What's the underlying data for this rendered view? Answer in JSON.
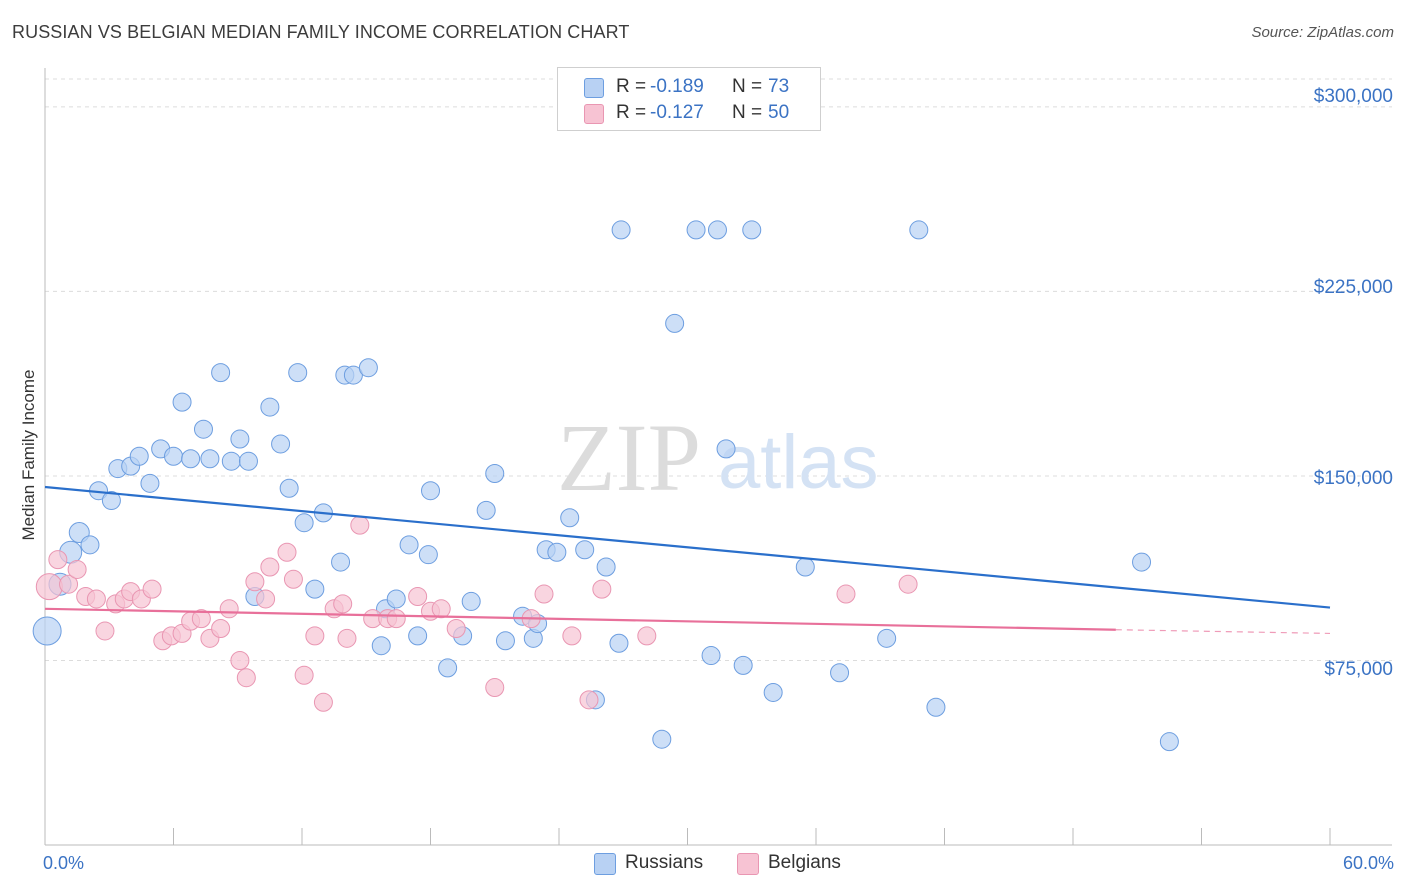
{
  "title": "RUSSIAN VS BELGIAN MEDIAN FAMILY INCOME CORRELATION CHART",
  "source": "Source: ZipAtlas.com",
  "watermark": {
    "zip": "ZIP",
    "atlas": "atlas"
  },
  "colors": {
    "blue_fill": "#b8d1f3",
    "blue_stroke": "#6d9ee0",
    "blue_line": "#2a6fcb",
    "pink_fill": "#f7c3d3",
    "pink_stroke": "#e996b2",
    "pink_line": "#e8709a",
    "tick_text": "#3b73c4",
    "grid": "#dcdcdc"
  },
  "legend": {
    "rows": [
      {
        "r_label": "R =",
        "r_value": "-0.189",
        "n_label": "N =",
        "n_value": "73",
        "color": "#b8d1f3",
        "border": "#6d9ee0"
      },
      {
        "r_label": "R =",
        "r_value": "-0.127",
        "n_label": "N =",
        "n_value": "50",
        "color": "#f7c3d3",
        "border": "#e996b2"
      }
    ]
  },
  "bottom_legend": [
    {
      "label": "Russians",
      "color": "#b8d1f3",
      "border": "#6d9ee0"
    },
    {
      "label": "Belgians",
      "color": "#f7c3d3",
      "border": "#e996b2"
    }
  ],
  "chart_data": {
    "type": "scatter",
    "title": "RUSSIAN VS BELGIAN MEDIAN FAMILY INCOME CORRELATION CHART",
    "xlabel": "",
    "ylabel": "Median Family Income",
    "xlim": [
      0,
      60
    ],
    "ylim": [
      0,
      315000
    ],
    "x_tick_labels": [
      "0.0%",
      "60.0%"
    ],
    "y_ticks": [
      75000,
      150000,
      225000,
      300000
    ],
    "y_tick_labels": [
      "$75,000",
      "$150,000",
      "$225,000",
      "$300,000"
    ],
    "grid": true,
    "legend_position": "top-center",
    "series": [
      {
        "name": "Russians",
        "r": -0.189,
        "n": 73,
        "trend": {
          "x0": 0,
          "y0": 145500,
          "x1": 60,
          "y1": 96500
        },
        "points": [
          {
            "x": 0.1,
            "y": 87000,
            "s": 14
          },
          {
            "x": 0.7,
            "y": 106000,
            "s": 11
          },
          {
            "x": 1.2,
            "y": 119000,
            "s": 11
          },
          {
            "x": 1.6,
            "y": 127000,
            "s": 10
          },
          {
            "x": 2.1,
            "y": 122000,
            "s": 9
          },
          {
            "x": 2.5,
            "y": 144000,
            "s": 9
          },
          {
            "x": 3.1,
            "y": 140000,
            "s": 9
          },
          {
            "x": 3.4,
            "y": 153000,
            "s": 9
          },
          {
            "x": 4.0,
            "y": 154000,
            "s": 9
          },
          {
            "x": 4.4,
            "y": 158000,
            "s": 9
          },
          {
            "x": 4.9,
            "y": 147000,
            "s": 9
          },
          {
            "x": 5.4,
            "y": 161000,
            "s": 9
          },
          {
            "x": 6.0,
            "y": 158000,
            "s": 9
          },
          {
            "x": 6.4,
            "y": 180000,
            "s": 9
          },
          {
            "x": 6.8,
            "y": 157000,
            "s": 9
          },
          {
            "x": 7.4,
            "y": 169000,
            "s": 9
          },
          {
            "x": 7.7,
            "y": 157000,
            "s": 9
          },
          {
            "x": 8.2,
            "y": 192000,
            "s": 9
          },
          {
            "x": 8.7,
            "y": 156000,
            "s": 9
          },
          {
            "x": 9.1,
            "y": 165000,
            "s": 9
          },
          {
            "x": 9.5,
            "y": 156000,
            "s": 9
          },
          {
            "x": 9.8,
            "y": 101000,
            "s": 9
          },
          {
            "x": 10.5,
            "y": 178000,
            "s": 9
          },
          {
            "x": 11.0,
            "y": 163000,
            "s": 9
          },
          {
            "x": 11.4,
            "y": 145000,
            "s": 9
          },
          {
            "x": 11.8,
            "y": 192000,
            "s": 9
          },
          {
            "x": 12.1,
            "y": 131000,
            "s": 9
          },
          {
            "x": 12.6,
            "y": 104000,
            "s": 9
          },
          {
            "x": 13.0,
            "y": 135000,
            "s": 9
          },
          {
            "x": 13.8,
            "y": 115000,
            "s": 9
          },
          {
            "x": 14.0,
            "y": 191000,
            "s": 9
          },
          {
            "x": 14.4,
            "y": 191000,
            "s": 9
          },
          {
            "x": 15.1,
            "y": 194000,
            "s": 9
          },
          {
            "x": 15.7,
            "y": 81000,
            "s": 9
          },
          {
            "x": 15.9,
            "y": 96000,
            "s": 9
          },
          {
            "x": 16.4,
            "y": 100000,
            "s": 9
          },
          {
            "x": 17.0,
            "y": 122000,
            "s": 9
          },
          {
            "x": 17.4,
            "y": 85000,
            "s": 9
          },
          {
            "x": 17.9,
            "y": 118000,
            "s": 9
          },
          {
            "x": 18.0,
            "y": 144000,
            "s": 9
          },
          {
            "x": 18.8,
            "y": 72000,
            "s": 9
          },
          {
            "x": 19.5,
            "y": 85000,
            "s": 9
          },
          {
            "x": 19.9,
            "y": 99000,
            "s": 9
          },
          {
            "x": 20.6,
            "y": 136000,
            "s": 9
          },
          {
            "x": 21.0,
            "y": 151000,
            "s": 9
          },
          {
            "x": 21.5,
            "y": 83000,
            "s": 9
          },
          {
            "x": 22.3,
            "y": 93000,
            "s": 9
          },
          {
            "x": 22.8,
            "y": 84000,
            "s": 9
          },
          {
            "x": 23.0,
            "y": 90000,
            "s": 9
          },
          {
            "x": 23.4,
            "y": 120000,
            "s": 9
          },
          {
            "x": 23.9,
            "y": 119000,
            "s": 9
          },
          {
            "x": 24.5,
            "y": 133000,
            "s": 9
          },
          {
            "x": 25.2,
            "y": 120000,
            "s": 9
          },
          {
            "x": 25.7,
            "y": 59000,
            "s": 9
          },
          {
            "x": 26.2,
            "y": 113000,
            "s": 9
          },
          {
            "x": 26.8,
            "y": 82000,
            "s": 9
          },
          {
            "x": 26.9,
            "y": 250000,
            "s": 9
          },
          {
            "x": 28.8,
            "y": 43000,
            "s": 9
          },
          {
            "x": 29.4,
            "y": 212000,
            "s": 9
          },
          {
            "x": 30.4,
            "y": 250000,
            "s": 9
          },
          {
            "x": 31.1,
            "y": 77000,
            "s": 9
          },
          {
            "x": 31.4,
            "y": 250000,
            "s": 9
          },
          {
            "x": 31.8,
            "y": 161000,
            "s": 9
          },
          {
            "x": 32.6,
            "y": 73000,
            "s": 9
          },
          {
            "x": 33.0,
            "y": 250000,
            "s": 9
          },
          {
            "x": 34.0,
            "y": 62000,
            "s": 9
          },
          {
            "x": 35.5,
            "y": 113000,
            "s": 9
          },
          {
            "x": 37.1,
            "y": 70000,
            "s": 9
          },
          {
            "x": 39.3,
            "y": 84000,
            "s": 9
          },
          {
            "x": 40.8,
            "y": 250000,
            "s": 9
          },
          {
            "x": 41.6,
            "y": 56000,
            "s": 9
          },
          {
            "x": 51.2,
            "y": 115000,
            "s": 9
          },
          {
            "x": 52.5,
            "y": 42000,
            "s": 9
          }
        ]
      },
      {
        "name": "Belgians",
        "r": -0.127,
        "n": 50,
        "trend": {
          "x0": 0,
          "y0": 96000,
          "x1": 50,
          "y1": 87500
        },
        "trend_dashed": {
          "x0": 50,
          "y0": 87500,
          "x1": 60,
          "y1": 86000
        },
        "points": [
          {
            "x": 0.2,
            "y": 105000,
            "s": 13
          },
          {
            "x": 0.6,
            "y": 116000,
            "s": 9
          },
          {
            "x": 1.1,
            "y": 106000,
            "s": 9
          },
          {
            "x": 1.5,
            "y": 112000,
            "s": 9
          },
          {
            "x": 1.9,
            "y": 101000,
            "s": 9
          },
          {
            "x": 2.4,
            "y": 100000,
            "s": 9
          },
          {
            "x": 2.8,
            "y": 87000,
            "s": 9
          },
          {
            "x": 3.3,
            "y": 98000,
            "s": 9
          },
          {
            "x": 3.7,
            "y": 100000,
            "s": 9
          },
          {
            "x": 4.0,
            "y": 103000,
            "s": 9
          },
          {
            "x": 4.5,
            "y": 100000,
            "s": 9
          },
          {
            "x": 5.0,
            "y": 104000,
            "s": 9
          },
          {
            "x": 5.5,
            "y": 83000,
            "s": 9
          },
          {
            "x": 5.9,
            "y": 85000,
            "s": 9
          },
          {
            "x": 6.4,
            "y": 86000,
            "s": 9
          },
          {
            "x": 6.8,
            "y": 91000,
            "s": 9
          },
          {
            "x": 7.3,
            "y": 92000,
            "s": 9
          },
          {
            "x": 7.7,
            "y": 84000,
            "s": 9
          },
          {
            "x": 8.2,
            "y": 88000,
            "s": 9
          },
          {
            "x": 8.6,
            "y": 96000,
            "s": 9
          },
          {
            "x": 9.1,
            "y": 75000,
            "s": 9
          },
          {
            "x": 9.4,
            "y": 68000,
            "s": 9
          },
          {
            "x": 9.8,
            "y": 107000,
            "s": 9
          },
          {
            "x": 10.3,
            "y": 100000,
            "s": 9
          },
          {
            "x": 10.5,
            "y": 113000,
            "s": 9
          },
          {
            "x": 11.3,
            "y": 119000,
            "s": 9
          },
          {
            "x": 11.6,
            "y": 108000,
            "s": 9
          },
          {
            "x": 12.1,
            "y": 69000,
            "s": 9
          },
          {
            "x": 12.6,
            "y": 85000,
            "s": 9
          },
          {
            "x": 13.0,
            "y": 58000,
            "s": 9
          },
          {
            "x": 13.5,
            "y": 96000,
            "s": 9
          },
          {
            "x": 13.9,
            "y": 98000,
            "s": 9
          },
          {
            "x": 14.1,
            "y": 84000,
            "s": 9
          },
          {
            "x": 14.7,
            "y": 130000,
            "s": 9
          },
          {
            "x": 15.3,
            "y": 92000,
            "s": 9
          },
          {
            "x": 16.0,
            "y": 92000,
            "s": 9
          },
          {
            "x": 16.4,
            "y": 92000,
            "s": 9
          },
          {
            "x": 17.4,
            "y": 101000,
            "s": 9
          },
          {
            "x": 18.0,
            "y": 95000,
            "s": 9
          },
          {
            "x": 18.5,
            "y": 96000,
            "s": 9
          },
          {
            "x": 19.2,
            "y": 88000,
            "s": 9
          },
          {
            "x": 21.0,
            "y": 64000,
            "s": 9
          },
          {
            "x": 22.7,
            "y": 92000,
            "s": 9
          },
          {
            "x": 23.3,
            "y": 102000,
            "s": 9
          },
          {
            "x": 24.6,
            "y": 85000,
            "s": 9
          },
          {
            "x": 25.4,
            "y": 59000,
            "s": 9
          },
          {
            "x": 26.0,
            "y": 104000,
            "s": 9
          },
          {
            "x": 28.1,
            "y": 85000,
            "s": 9
          },
          {
            "x": 37.4,
            "y": 102000,
            "s": 9
          },
          {
            "x": 40.3,
            "y": 106000,
            "s": 9
          }
        ]
      }
    ]
  }
}
